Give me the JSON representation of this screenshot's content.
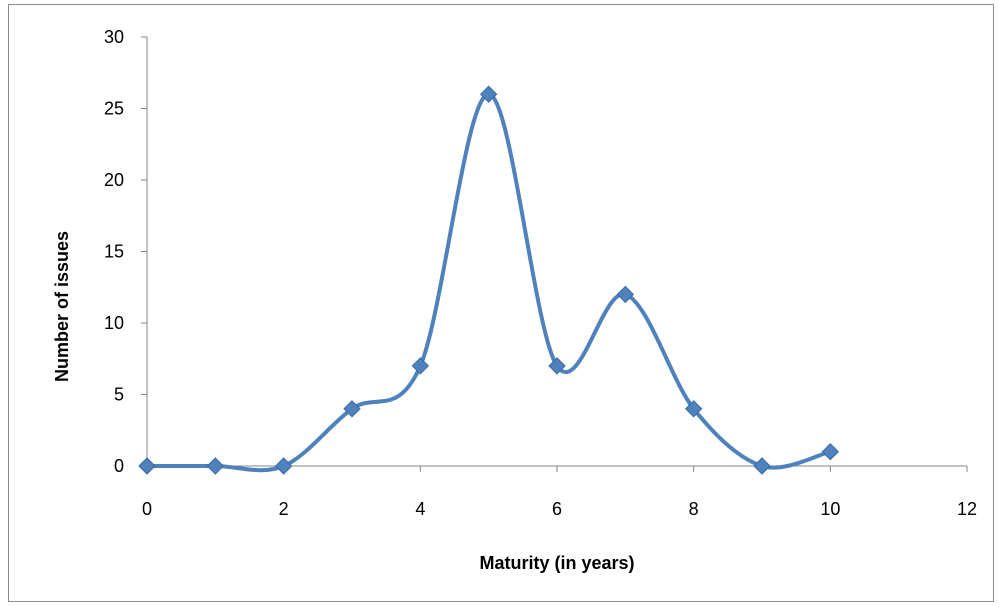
{
  "chart_data": {
    "type": "line",
    "smooth": true,
    "marker": "diamond",
    "title": "",
    "xlabel": "Maturity (in years)",
    "ylabel": "Number of issues",
    "xlim": [
      0,
      12
    ],
    "ylim": [
      0,
      30
    ],
    "xticks": [
      0,
      2,
      4,
      6,
      8,
      10,
      12
    ],
    "yticks": [
      0,
      5,
      10,
      15,
      20,
      25,
      30
    ],
    "grid": false,
    "legend": "none",
    "series": [
      {
        "color": "#4f81bd",
        "x": [
          0,
          1,
          2,
          3,
          4,
          5,
          6,
          7,
          8,
          9,
          10
        ],
        "y": [
          0,
          0,
          0,
          4,
          7,
          26,
          7,
          12,
          4,
          0,
          1
        ]
      }
    ]
  }
}
